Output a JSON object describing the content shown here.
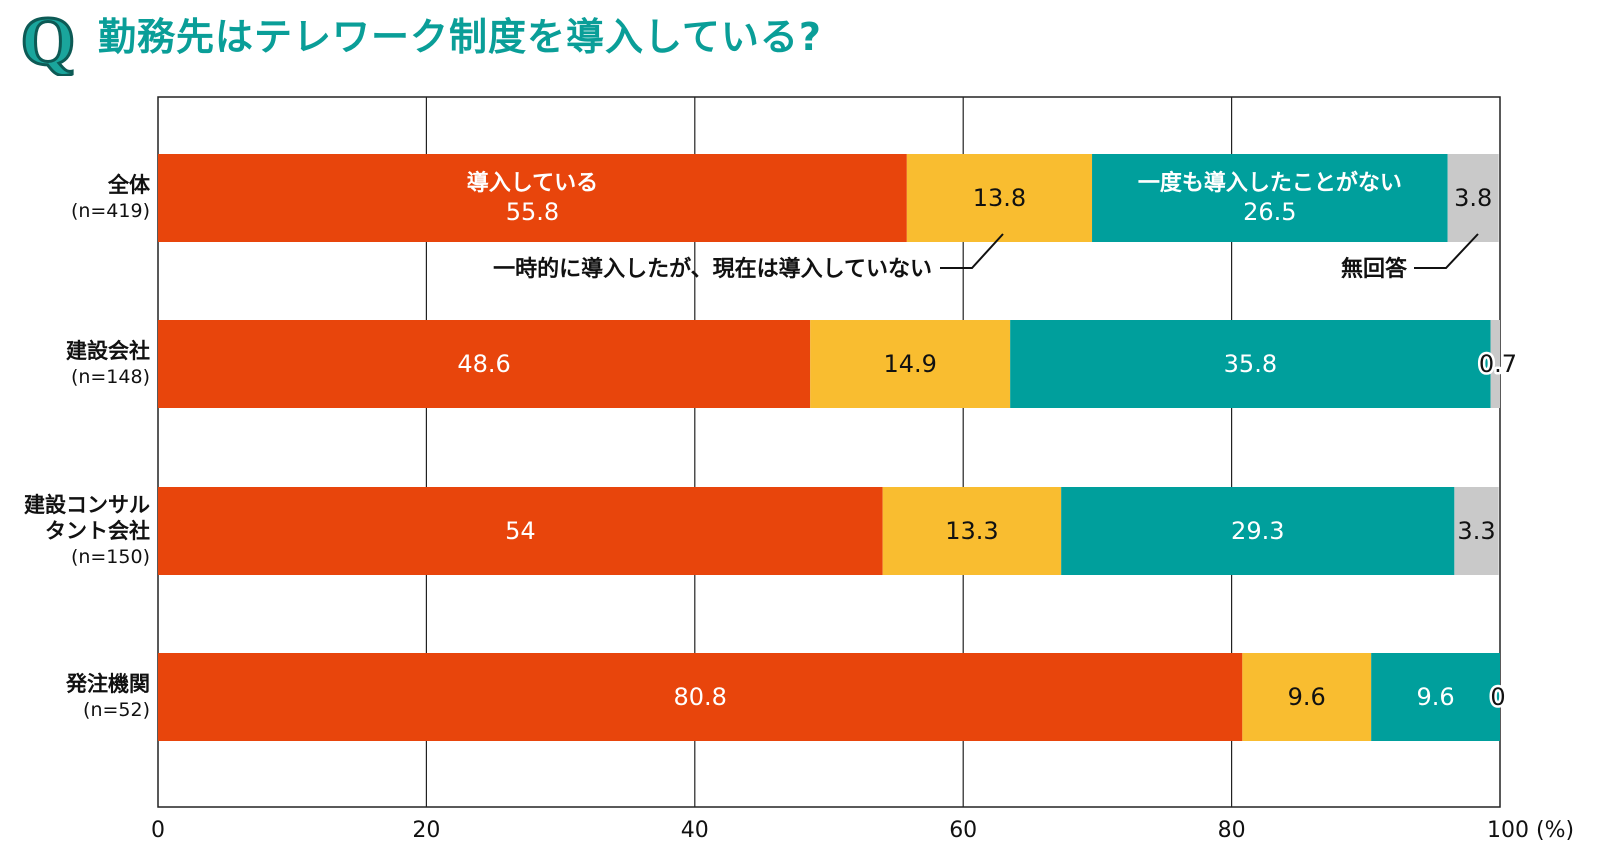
{
  "title": "勤務先はテレワーク制度を導入している?",
  "badge_letter": "Q",
  "colors": {
    "implemented": "#e8450c",
    "discontinued": "#f9bd30",
    "never": "#009f9c",
    "no_answer": "#c9c9c9",
    "title": "#0a9e98"
  },
  "chart_data": {
    "type": "bar",
    "orientation": "horizontal",
    "stacked": true,
    "xlim": [
      0,
      100
    ],
    "x_ticks": [
      "0",
      "20",
      "40",
      "60",
      "80"
    ],
    "x_unit_label": "100 (%)",
    "grid": true,
    "categories": [
      {
        "name": "全体",
        "n": "(n=419)"
      },
      {
        "name": "建設会社",
        "n": "(n=148)"
      },
      {
        "name": "建設コンサル\nタント会社",
        "n": "(n=150)"
      },
      {
        "name": "発注機関",
        "n": "(n=52)"
      }
    ],
    "series": [
      {
        "key": "implemented",
        "name": "導入している",
        "values": [
          55.8,
          48.6,
          54,
          80.8
        ],
        "labels": [
          "55.8",
          "48.6",
          "54",
          "80.8"
        ]
      },
      {
        "key": "discontinued",
        "name": "一時的に導入したが、現在は導入していない",
        "values": [
          13.8,
          14.9,
          13.3,
          9.6
        ],
        "labels": [
          "13.8",
          "14.9",
          "13.3",
          "9.6"
        ]
      },
      {
        "key": "never",
        "name": "一度も導入したことがない",
        "values": [
          26.5,
          35.8,
          29.3,
          9.6
        ],
        "labels": [
          "26.5",
          "35.8",
          "29.3",
          "9.6"
        ]
      },
      {
        "key": "no_answer",
        "name": "無回答",
        "values": [
          3.8,
          0.7,
          3.3,
          0
        ],
        "labels": [
          "3.8",
          "0.7",
          "3.3",
          "0"
        ]
      }
    ]
  }
}
